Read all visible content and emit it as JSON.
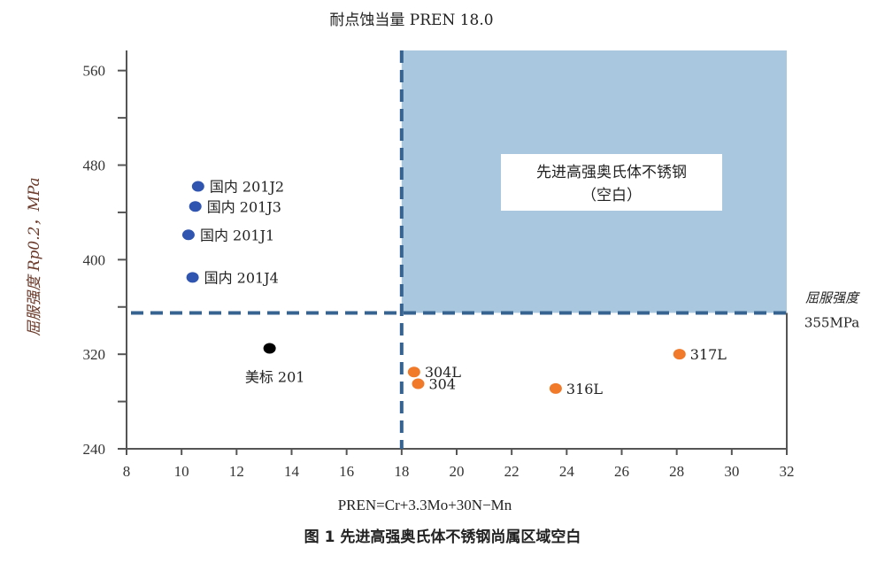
{
  "chart_data": {
    "type": "scatter",
    "title": "耐点蚀当量 PREN 18.0",
    "xlabel": "PREN=Cr+3.3Mo+30N−Mn",
    "ylabel": "屈服强度 Rp0.2，MPa",
    "caption": "图 1 先进高强奥氏体不锈钢尚属区域空白",
    "xlim": [
      8,
      32
    ],
    "ylim": [
      240,
      577
    ],
    "xticks": [
      "8",
      "10",
      "12",
      "14",
      "16",
      "18",
      "20",
      "22",
      "24",
      "26",
      "28",
      "30",
      "32"
    ],
    "yticks": [
      "240",
      "320",
      "400",
      "480",
      "560"
    ],
    "grid": false,
    "thresholds": {
      "x": 18,
      "y": 355
    },
    "threshold_label": [
      "屈服强度",
      "355MPa"
    ],
    "region_label": [
      "先进高强奥氏体不锈钢",
      "（空白）"
    ],
    "colors": {
      "domestic": "#2f55b0",
      "us": "#000000",
      "standard": "#f07a2a",
      "region": "#a9c8e0",
      "dash": "#36638f"
    },
    "points": [
      {
        "label": "国内 201J2",
        "x": 10.6,
        "y": 462,
        "group": "domestic"
      },
      {
        "label": "国内 201J3",
        "x": 10.5,
        "y": 445,
        "group": "domestic"
      },
      {
        "label": "国内 201J1",
        "x": 10.25,
        "y": 421,
        "group": "domestic"
      },
      {
        "label": "国内 201J4",
        "x": 10.4,
        "y": 385,
        "group": "domestic"
      },
      {
        "label": "美标 201",
        "x": 13.2,
        "y": 325,
        "group": "us"
      },
      {
        "label": "304L",
        "x": 18.45,
        "y": 305,
        "group": "standard"
      },
      {
        "label": "304",
        "x": 18.6,
        "y": 295,
        "group": "standard"
      },
      {
        "label": "316L",
        "x": 23.6,
        "y": 291,
        "group": "standard"
      },
      {
        "label": "317L",
        "x": 28.1,
        "y": 320,
        "group": "standard"
      }
    ]
  }
}
